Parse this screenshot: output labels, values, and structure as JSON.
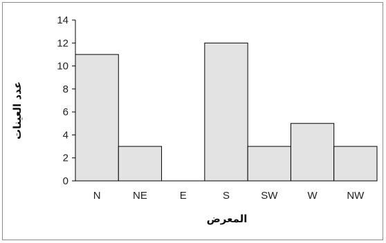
{
  "chart_data": {
    "type": "bar",
    "categories": [
      "N",
      "NE",
      "E",
      "S",
      "SW",
      "W",
      "NW"
    ],
    "values": [
      11,
      3,
      0,
      12,
      3,
      5,
      3
    ],
    "title": "",
    "xlabel": "المعرض",
    "ylabel": "عدد العينات",
    "ylim": [
      0,
      14
    ],
    "yticks": [
      0,
      2,
      4,
      6,
      8,
      10,
      12,
      14
    ],
    "grid": false,
    "legend": "none",
    "bar_fill": "#e3e3e3",
    "bar_stroke": "#000000"
  }
}
